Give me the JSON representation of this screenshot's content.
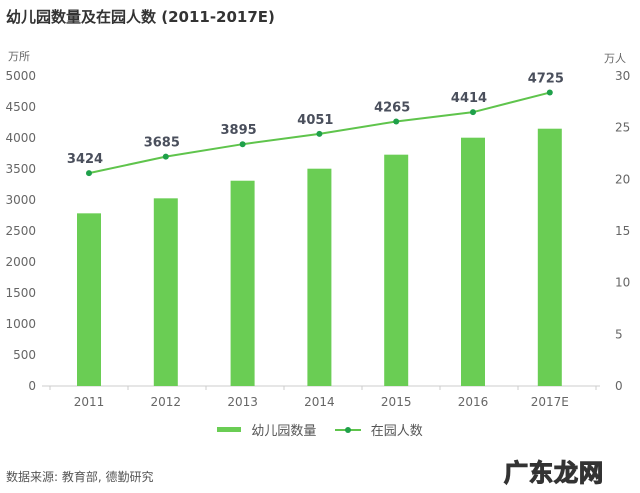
{
  "title": "幼儿园数量及在园人数 (2011-2017E)",
  "source": "数据来源: 教育部, 德勤研究",
  "watermark": "广东龙网",
  "colors": {
    "bar": "#6acd54",
    "line": "#5fc44c",
    "marker": "#1fa04a"
  },
  "chart_data": {
    "type": "bar+line",
    "title": "幼儿园数量及在园人数 (2011-2017E)",
    "categories": [
      "2011",
      "2012",
      "2013",
      "2014",
      "2015",
      "2016",
      "2017E"
    ],
    "left_axis": {
      "unit": "万所",
      "ylim": [
        0,
        5000
      ],
      "ticks": [
        "0",
        "500",
        "1000",
        "1500",
        "2000",
        "2500",
        "3000",
        "3500",
        "4000",
        "4500",
        "5000"
      ]
    },
    "right_axis": {
      "unit": "万人",
      "ylim": [
        0,
        30
      ],
      "ticks": [
        "0",
        "5",
        "10",
        "15",
        "20",
        "25",
        "30"
      ]
    },
    "series": [
      {
        "name": "幼儿园数量",
        "type": "bar",
        "axis": "left",
        "values": [
          2785,
          3027,
          3311,
          3505,
          3731,
          4005,
          4150
        ]
      },
      {
        "name": "在园人数",
        "type": "line",
        "axis": "right",
        "values": [
          20.6,
          22.2,
          23.4,
          24.4,
          25.6,
          26.5,
          28.4
        ],
        "data_labels": [
          "3424",
          "3685",
          "3895",
          "4051",
          "4265",
          "4414",
          "4725"
        ]
      }
    ],
    "grid": false,
    "legend": "bottom"
  }
}
